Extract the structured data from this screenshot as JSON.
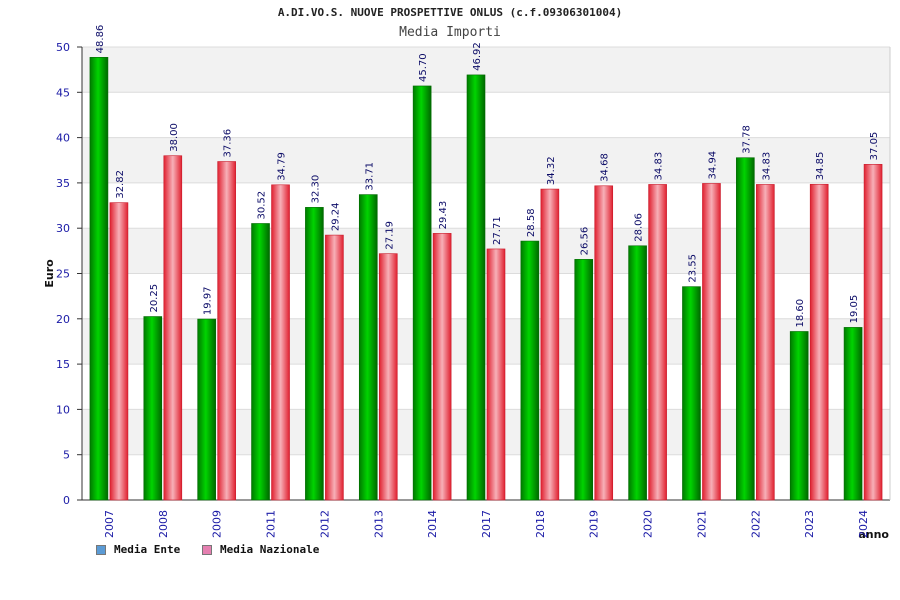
{
  "header": {
    "title": "A.DI.VO.S. NUOVE PROSPETTIVE ONLUS (c.f.09306301004)",
    "subtitle": "Media Importi"
  },
  "legend": [
    {
      "label": "Media Ente",
      "color": "#5b9bd5"
    },
    {
      "label": "Media Nazionale",
      "color": "#e57fb0"
    }
  ],
  "colors": {
    "ente_bar": "#00b000",
    "nazionale_bar": "#f0404f"
  },
  "chart_data": {
    "type": "bar",
    "title": "Media Importi",
    "xlabel": "anno",
    "ylabel": "Euro",
    "ylim": [
      0,
      50
    ],
    "yticks": [
      0,
      5,
      10,
      15,
      20,
      25,
      30,
      35,
      40,
      45,
      50
    ],
    "categories": [
      "2007",
      "2008",
      "2009",
      "2011",
      "2012",
      "2013",
      "2014",
      "2017",
      "2018",
      "2019",
      "2020",
      "2021",
      "2022",
      "2023",
      "2024"
    ],
    "series": [
      {
        "name": "Media Ente",
        "values": [
          48.86,
          20.25,
          19.97,
          30.52,
          32.3,
          33.71,
          45.7,
          46.92,
          28.58,
          26.56,
          28.06,
          23.55,
          37.78,
          18.6,
          19.05
        ],
        "labels": [
          "48.86",
          "20.25",
          "19.97",
          "30.52",
          "32.30",
          "33.71",
          "45.70",
          "46.92",
          "28.58",
          "26.56",
          "28.06",
          "23.55",
          "37.78",
          "18.60",
          "19.05"
        ]
      },
      {
        "name": "Media Nazionale",
        "values": [
          32.82,
          38.0,
          37.36,
          34.79,
          29.24,
          27.19,
          29.43,
          27.71,
          34.32,
          34.68,
          34.83,
          34.94,
          34.83,
          34.85,
          37.05
        ],
        "labels": [
          "32.82",
          "38.00",
          "37.36",
          "34.79",
          "29.24",
          "27.19",
          "29.43",
          "27.71",
          "34.32",
          "34.68",
          "34.83",
          "34.94",
          "34.83",
          "34.85",
          "37.05"
        ]
      }
    ],
    "grid": true,
    "legend_position": "bottom-left"
  }
}
